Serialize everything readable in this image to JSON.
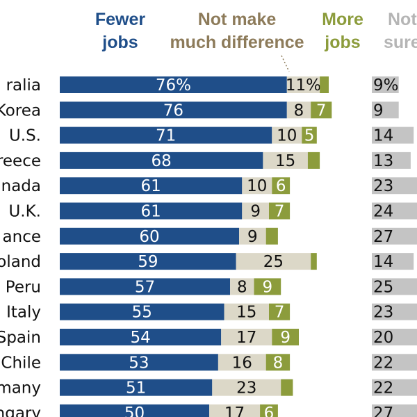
{
  "colors": {
    "fewer": "#1f4e89",
    "not_make": "#dcd8c8",
    "more": "#8c9c3c",
    "not_sure": "#c4c4c4",
    "header_fewer": "#1f4e89",
    "header_not_make": "#8d7b5a",
    "header_more": "#8c9c3c",
    "header_not_sure": "#b5b5b5"
  },
  "headers": {
    "fewer": [
      "Fewer",
      "jobs"
    ],
    "not_make": [
      "Not make",
      "much difference"
    ],
    "more": [
      "More",
      "jobs"
    ],
    "not_sure": [
      "Not",
      "sure"
    ]
  },
  "chart_data": {
    "type": "bar",
    "orientation": "horizontal",
    "stacked": true,
    "categories": [
      "Australia",
      "S. Korea",
      "U.S.",
      "Greece",
      "Canada",
      "U.K.",
      "France",
      "Poland",
      "Peru",
      "Italy",
      "Spain",
      "Chile",
      "Germany",
      "Hungary"
    ],
    "categories_visible": [
      "ralia",
      "Korea",
      "U.S.",
      "reece",
      "nada",
      "U.K.",
      "ance",
      "oland",
      "Peru",
      "Italy",
      "Spain",
      "Chile",
      "many",
      "ngary"
    ],
    "series": [
      {
        "name": "Fewer jobs",
        "key": "fewer",
        "values": [
          76,
          76,
          71,
          68,
          61,
          61,
          60,
          59,
          57,
          55,
          54,
          53,
          51,
          50
        ],
        "labels": [
          "76%",
          "76",
          "71",
          "68",
          "61",
          "61",
          "60",
          "59",
          "57",
          "55",
          "54",
          "53",
          "51",
          "50"
        ]
      },
      {
        "name": "Not make much difference",
        "key": "not_make",
        "values": [
          11,
          8,
          10,
          15,
          10,
          9,
          9,
          25,
          8,
          15,
          17,
          16,
          23,
          17
        ],
        "labels": [
          "11%",
          "8",
          "10",
          "15",
          "10",
          "9",
          "9",
          "25",
          "8",
          "15",
          "17",
          "16",
          "23",
          "17"
        ]
      },
      {
        "name": "More jobs",
        "key": "more",
        "values": [
          3,
          7,
          5,
          4,
          6,
          7,
          4,
          2,
          9,
          7,
          9,
          8,
          4,
          6
        ],
        "labels": [
          "",
          "7",
          "5",
          "",
          "6",
          "7",
          "",
          "",
          "9",
          "7",
          "9",
          "8",
          "",
          "6"
        ]
      },
      {
        "name": "Not sure",
        "key": "not_sure",
        "values": [
          9,
          9,
          14,
          13,
          23,
          24,
          27,
          14,
          25,
          23,
          20,
          22,
          22,
          27
        ],
        "labels": [
          "9%",
          "9",
          "14",
          "13",
          "23",
          "24",
          "27",
          "14",
          "25",
          "23",
          "20",
          "22",
          "22",
          "27"
        ]
      }
    ],
    "xlim": [
      0,
      100
    ]
  }
}
